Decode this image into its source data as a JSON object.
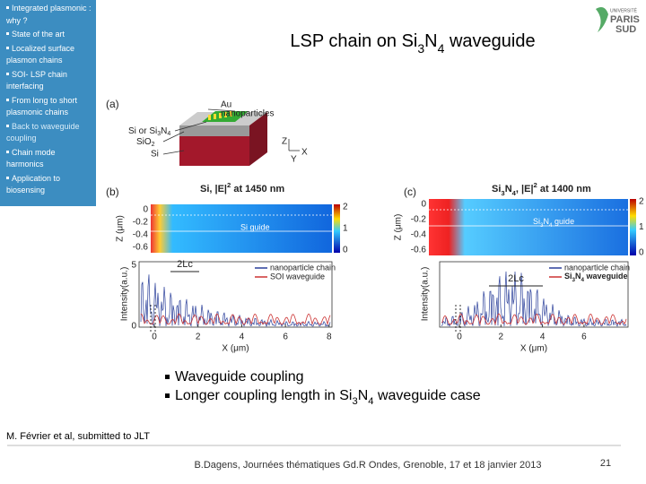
{
  "sidebar": [
    "Integrated plasmonic : why ?",
    "State of the art",
    "Localized surface plasmon chains",
    "SOI- LSP chain interfacing",
    "From long to short plasmonic chains",
    "Back to waveguide coupling",
    "Chain mode harmonics",
    "Application to biosensing"
  ],
  "title": [
    "LSP chain on Si",
    "3",
    "N",
    "4",
    " waveguide"
  ],
  "logo": [
    "UNIVERSITÉ",
    "PARIS",
    "SUD"
  ],
  "figure": {
    "a": {
      "label": "(a)",
      "au": "Au",
      "np": "nanoparticles",
      "core": [
        "Si or Si",
        "3",
        "N",
        "4"
      ],
      "sio2": [
        "SiO",
        "2"
      ],
      "si": "Si",
      "axes": [
        "Z",
        "Y",
        "X"
      ]
    },
    "b": {
      "label": "(b)",
      "map_title": [
        "Si, |E|",
        "2",
        " at 1450 nm"
      ],
      "guide": "Si guide",
      "zlabel": "Z (μm)",
      "zticks": [
        "0",
        "-0.2",
        "-0.4",
        "-0.6"
      ],
      "cbar": [
        "2",
        "1",
        "0"
      ],
      "ylabel": "Intensity(a.u.)",
      "yticks": [
        "5",
        "0"
      ],
      "xlabel": "X (μm)",
      "xticks": [
        "0",
        "2",
        "4",
        "6",
        "8"
      ],
      "lc": "2Lc",
      "legend": [
        "nanoparticle chain",
        "SOI waveguide"
      ]
    },
    "c": {
      "label": "(c)",
      "map_title": [
        "Si",
        "3",
        "N",
        "4",
        ", |E|",
        "2",
        " at 1400 nm"
      ],
      "guide": [
        "Si",
        "3",
        "N",
        "4",
        " guide"
      ],
      "zlabel": "Z (μm)",
      "zticks": [
        "0",
        "-0.2",
        "-0.4",
        "-0.6"
      ],
      "cbar": [
        "2",
        "1",
        "0"
      ],
      "ylabel": "Intensity(a.u.)",
      "xlabel": "X (μm)",
      "xticks": [
        "0",
        "2",
        "4",
        "6"
      ],
      "lc": "2Lc",
      "legend": [
        "nanoparticle chain",
        [
          "Si",
          "3",
          "N",
          "4",
          " waveguide"
        ]
      ]
    }
  },
  "bullets": [
    "Waveguide coupling",
    [
      "Longer coupling length in Si",
      "3",
      "N",
      "4",
      " waveguide case"
    ]
  ],
  "reference": "M. Février et al, submitted to JLT",
  "footer": "B.Dagens, Journées thématiques Gd.R Ondes, Grenoble, 17 et 18 janvier 2013",
  "page": "21"
}
